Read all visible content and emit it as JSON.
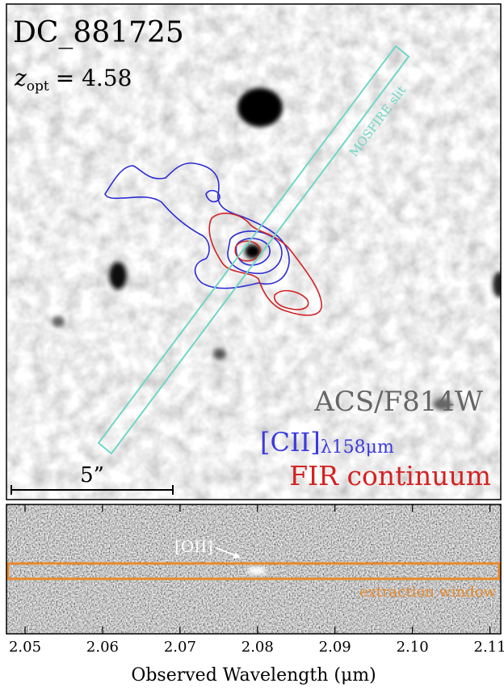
{
  "image_panel": {
    "object_name": "DC_881725",
    "redshift": {
      "symbol": "z",
      "subscript": "opt",
      "text": "= 4.58"
    },
    "slit_label": "MOSFIRE slit",
    "legend": {
      "acs": "ACS/F814W",
      "cii": "[CII]",
      "cii_subscript": "λ158μm",
      "fir": "FIR continuum"
    },
    "scale_bar": "5”"
  },
  "spectrum_panel": {
    "line_label": "[OII]",
    "window_label": "extraction window",
    "xlim": [
      2.0476,
      2.1114
    ],
    "xticks": [
      {
        "value": 2.05,
        "label": "2.05"
      },
      {
        "value": 2.06,
        "label": "2.06"
      },
      {
        "value": 2.07,
        "label": "2.07"
      },
      {
        "value": 2.08,
        "label": "2.08"
      },
      {
        "value": 2.09,
        "label": "2.09"
      },
      {
        "value": 2.1,
        "label": "2.10"
      },
      {
        "value": 2.11,
        "label": "2.11"
      }
    ],
    "x_label": "Observed Wavelength (μm)"
  }
}
